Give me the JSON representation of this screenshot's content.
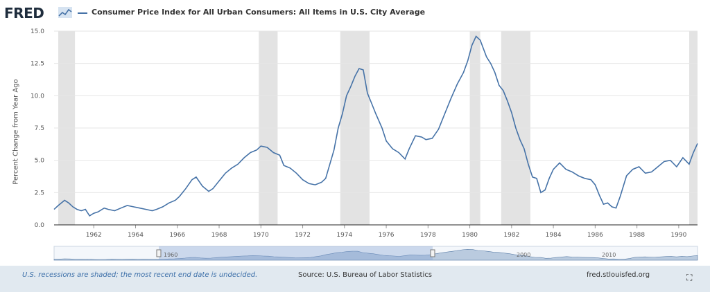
{
  "header": {
    "logo_text": "FRED",
    "logo_icon": "fred-chart-icon",
    "series_title": "Consumer Price Index for All Urban Consumers: All Items in U.S. City Average",
    "series_color": "#4572a7"
  },
  "chart_data": {
    "type": "line",
    "title": "Consumer Price Index for All Urban Consumers: All Items in U.S. City Average",
    "xlabel": "",
    "ylabel": "Percent Change from Year Ago",
    "ylim": [
      0,
      15
    ],
    "xlim": [
      1960.1,
      1990.9
    ],
    "y_ticks": [
      "0.0",
      "2.5",
      "5.0",
      "7.5",
      "10.0",
      "12.5",
      "15.0"
    ],
    "x_ticks": [
      "1962",
      "1964",
      "1966",
      "1968",
      "1970",
      "1972",
      "1974",
      "1976",
      "1978",
      "1980",
      "1982",
      "1984",
      "1986",
      "1988",
      "1990"
    ],
    "grid": true,
    "recessions": [
      [
        1960.3,
        1961.1
      ],
      [
        1969.9,
        1970.8
      ],
      [
        1973.8,
        1975.2
      ],
      [
        1980.0,
        1980.5
      ],
      [
        1981.5,
        1982.9
      ],
      [
        1990.5,
        1990.9
      ]
    ],
    "x": [
      1960.1,
      1960.3,
      1960.6,
      1960.8,
      1961.0,
      1961.2,
      1961.4,
      1961.6,
      1961.8,
      1962.0,
      1962.2,
      1962.5,
      1962.7,
      1963.0,
      1963.3,
      1963.6,
      1963.9,
      1964.2,
      1964.5,
      1964.8,
      1965.0,
      1965.3,
      1965.6,
      1965.9,
      1966.1,
      1966.4,
      1966.7,
      1966.9,
      1967.2,
      1967.5,
      1967.7,
      1968.0,
      1968.3,
      1968.6,
      1968.9,
      1969.2,
      1969.5,
      1969.8,
      1970.0,
      1970.3,
      1970.6,
      1970.9,
      1971.1,
      1971.4,
      1971.7,
      1972.0,
      1972.3,
      1972.6,
      1972.9,
      1973.1,
      1973.3,
      1973.5,
      1973.7,
      1973.9,
      1974.1,
      1974.3,
      1974.5,
      1974.7,
      1974.9,
      1975.1,
      1975.3,
      1975.5,
      1975.8,
      1976.0,
      1976.3,
      1976.6,
      1976.9,
      1977.1,
      1977.4,
      1977.7,
      1977.9,
      1978.2,
      1978.5,
      1978.8,
      1979.1,
      1979.4,
      1979.7,
      1979.9,
      1980.1,
      1980.3,
      1980.5,
      1980.8,
      1981.0,
      1981.2,
      1981.4,
      1981.6,
      1981.8,
      1982.0,
      1982.2,
      1982.4,
      1982.6,
      1982.8,
      1983.0,
      1983.2,
      1983.4,
      1983.6,
      1983.8,
      1984.0,
      1984.3,
      1984.6,
      1984.9,
      1985.2,
      1985.5,
      1985.8,
      1986.0,
      1986.2,
      1986.4,
      1986.6,
      1986.8,
      1987.0,
      1987.2,
      1987.5,
      1987.8,
      1988.1,
      1988.4,
      1988.7,
      1989.0,
      1989.3,
      1989.6,
      1989.9,
      1990.2,
      1990.5,
      1990.7,
      1990.9
    ],
    "values": [
      1.2,
      1.5,
      1.9,
      1.7,
      1.4,
      1.2,
      1.1,
      1.2,
      0.7,
      0.9,
      1.0,
      1.3,
      1.2,
      1.1,
      1.3,
      1.5,
      1.4,
      1.3,
      1.2,
      1.1,
      1.2,
      1.4,
      1.7,
      1.9,
      2.2,
      2.8,
      3.5,
      3.7,
      3.0,
      2.6,
      2.8,
      3.4,
      4.0,
      4.4,
      4.7,
      5.2,
      5.6,
      5.8,
      6.1,
      6.0,
      5.6,
      5.4,
      4.6,
      4.4,
      4.0,
      3.5,
      3.2,
      3.1,
      3.3,
      3.6,
      4.7,
      5.8,
      7.5,
      8.6,
      10.0,
      10.7,
      11.5,
      12.1,
      12.0,
      10.2,
      9.4,
      8.6,
      7.5,
      6.5,
      5.9,
      5.6,
      5.1,
      5.9,
      6.9,
      6.8,
      6.6,
      6.7,
      7.4,
      8.6,
      9.8,
      10.9,
      11.8,
      12.7,
      13.9,
      14.6,
      14.3,
      13.0,
      12.5,
      11.8,
      10.8,
      10.4,
      9.6,
      8.7,
      7.5,
      6.6,
      5.9,
      4.7,
      3.7,
      3.6,
      2.5,
      2.7,
      3.6,
      4.3,
      4.8,
      4.3,
      4.1,
      3.8,
      3.6,
      3.5,
      3.1,
      2.3,
      1.6,
      1.7,
      1.4,
      1.3,
      2.2,
      3.8,
      4.3,
      4.5,
      4.0,
      4.1,
      4.5,
      4.9,
      5.0,
      4.5,
      5.2,
      4.7,
      5.6,
      6.3
    ]
  },
  "navigator": {
    "left_label": "1960",
    "mid_labels": [
      "2000",
      "2010"
    ]
  },
  "footer": {
    "note": "U.S. recessions are shaded; the most recent end date is undecided.",
    "source": "Source: U.S. Bureau of Labor Statistics",
    "url": "fred.stlouisfed.org",
    "expand_icon": "fullscreen-icon"
  }
}
